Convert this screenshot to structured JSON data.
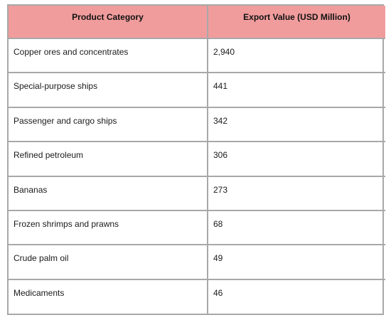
{
  "chart_data": {
    "type": "table",
    "columns": [
      "Product Category",
      "Export Value (USD Million)"
    ],
    "rows": [
      [
        "Copper ores and concentrates",
        "2,940"
      ],
      [
        "Special-purpose ships",
        "441"
      ],
      [
        "Passenger and cargo ships",
        "342"
      ],
      [
        "Refined petroleum",
        "306"
      ],
      [
        "Bananas",
        "273"
      ],
      [
        "Frozen shrimps and prawns",
        "68"
      ],
      [
        "Crude palm oil",
        "49"
      ],
      [
        "Medicaments",
        "46"
      ]
    ]
  },
  "colors": {
    "header_background": "#f19c9c",
    "border": "#a8a8a8",
    "body_background": "#ffffff"
  }
}
